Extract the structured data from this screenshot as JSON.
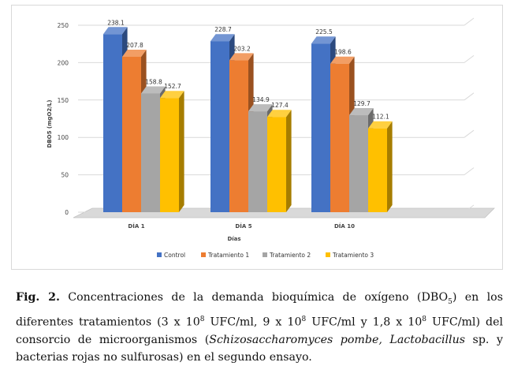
{
  "chart_data": {
    "type": "bar",
    "categories": [
      "DÍA 1",
      "DÍA 5",
      "DÍA 10"
    ],
    "series": [
      {
        "name": "Control",
        "values": [
          238.1,
          228.7,
          225.5
        ],
        "color": "#4472c4"
      },
      {
        "name": "Tratamiento 1",
        "values": [
          207.8,
          203.2,
          198.6
        ],
        "color": "#ed7d31"
      },
      {
        "name": "Tratamiento 2",
        "values": [
          158.8,
          134.9,
          129.7
        ],
        "color": "#a5a5a5"
      },
      {
        "name": "Tratamiento 3",
        "values": [
          152.7,
          127.4,
          112.1
        ],
        "color": "#ffc000"
      }
    ],
    "xlabel": "Días",
    "ylabel": "DBO5 (mgO2/L)",
    "ylim": [
      0,
      250
    ],
    "yticks": [
      "0",
      "50",
      "100",
      "150",
      "200",
      "250"
    ],
    "grid": true,
    "legend": "bottom",
    "style": "3d-clustered-column"
  },
  "caption": {
    "prefix": "Fig. 2.",
    "text_1": " Concentraciones de la demanda bioquímica de oxígeno (DBO",
    "subscript": "5",
    "text_2": ") en los diferentes tratamientos (3 x 10",
    "exp_a": "8",
    "text_3": " UFC/ml, 9 x 10",
    "exp_b": "8",
    "text_4": " UFC/ml y 1,8 x 10",
    "exp_c": "8",
    "text_5": " UFC/ml) del consorcio de microorganismos (",
    "italic_1": "Schizosaccharomyces pombe, Lactobacillus",
    "text_6": " sp. y bacterias rojas no sulfurosas) en el segundo ensayo."
  }
}
